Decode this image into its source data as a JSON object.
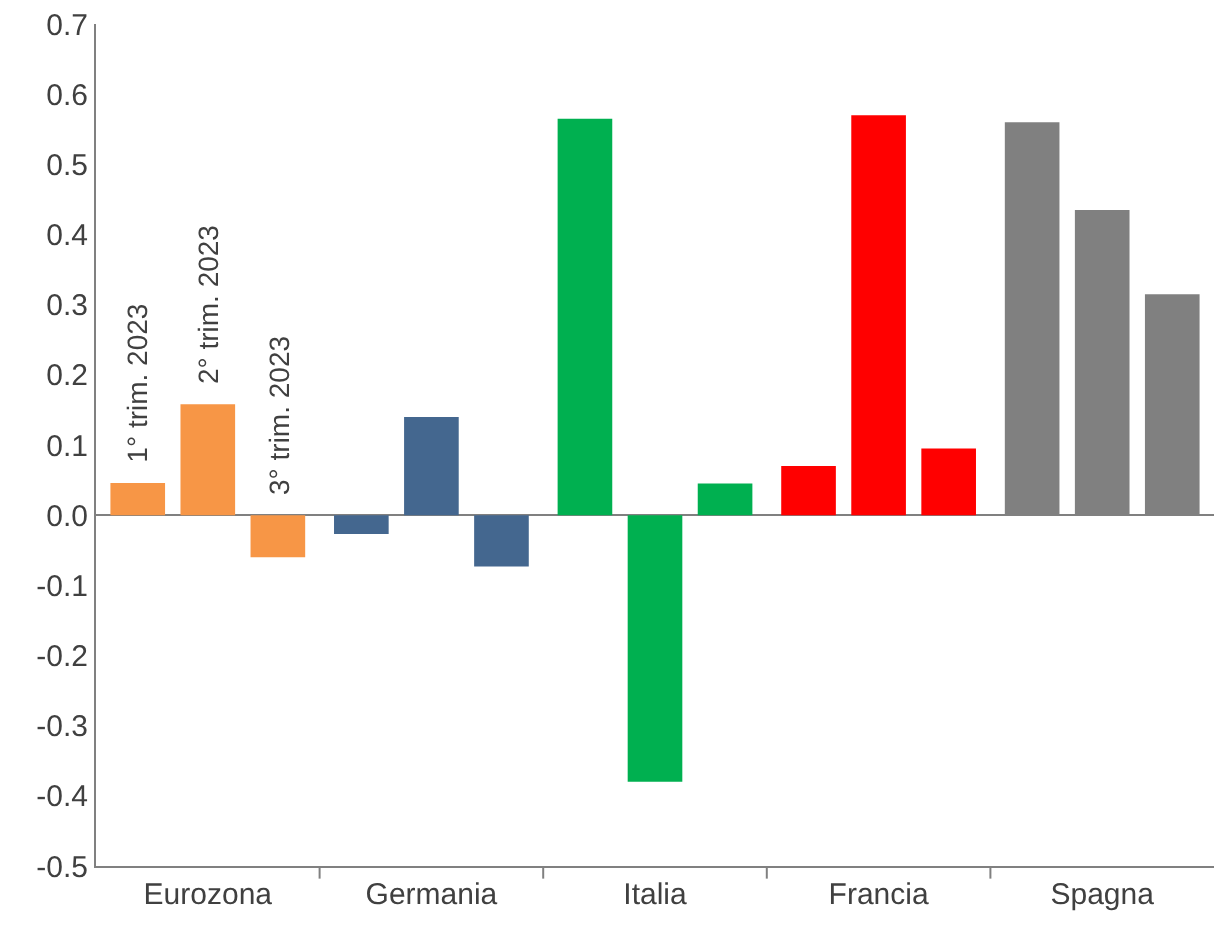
{
  "chart_data": {
    "type": "bar",
    "categories": [
      "Eurozona",
      "Germania",
      "Italia",
      "Francia",
      "Spagna"
    ],
    "series": [
      {
        "name": "1° trim. 2023",
        "colors": [
          "#f79646",
          "#44678f",
          "#00b050",
          "#ff0000",
          "#808080"
        ],
        "values": [
          0.046,
          -0.027,
          0.565,
          0.07,
          0.56
        ]
      },
      {
        "name": "2° trim. 2023",
        "colors": [
          "#f79646",
          "#44678f",
          "#00b050",
          "#ff0000",
          "#808080"
        ],
        "values": [
          0.158,
          0.14,
          -0.38,
          0.57,
          0.435
        ]
      },
      {
        "name": "3° trim. 2023",
        "colors": [
          "#f79646",
          "#44678f",
          "#00b050",
          "#ff0000",
          "#808080"
        ],
        "values": [
          -0.06,
          -0.073,
          0.045,
          0.095,
          0.315
        ]
      }
    ],
    "ylim": [
      -0.5,
      0.7
    ],
    "yticks": [
      {
        "value": -0.5,
        "label": "-0.5"
      },
      {
        "value": -0.4,
        "label": "-0.4"
      },
      {
        "value": -0.3,
        "label": "-0.3"
      },
      {
        "value": -0.2,
        "label": "-0.2"
      },
      {
        "value": -0.1,
        "label": "-0.1"
      },
      {
        "value": 0,
        "label": "0.0"
      },
      {
        "value": 0.1,
        "label": "0.1"
      },
      {
        "value": 0.2,
        "label": "0.2"
      },
      {
        "value": 0.3,
        "label": "0.3"
      },
      {
        "value": 0.4,
        "label": "0.4"
      },
      {
        "value": 0.5,
        "label": "0.5"
      },
      {
        "value": 0.6,
        "label": "0.6"
      },
      {
        "value": 0.7,
        "label": "0.7"
      }
    ],
    "legend": false
  }
}
